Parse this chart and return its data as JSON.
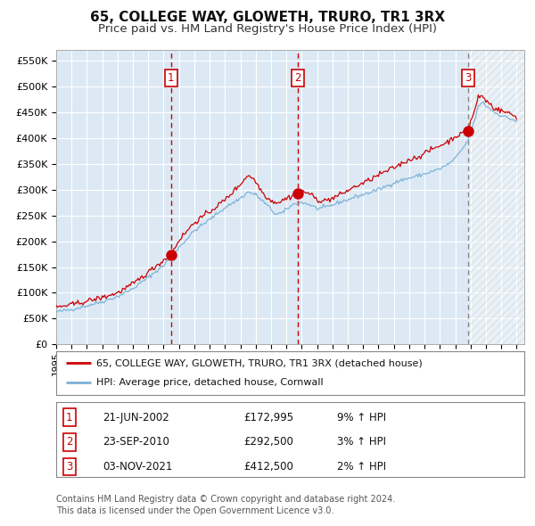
{
  "title": "65, COLLEGE WAY, GLOWETH, TRURO, TR1 3RX",
  "subtitle": "Price paid vs. HM Land Registry's House Price Index (HPI)",
  "title_fontsize": 11,
  "subtitle_fontsize": 9.5,
  "ylim": [
    0,
    570000
  ],
  "yticks": [
    0,
    50000,
    100000,
    150000,
    200000,
    250000,
    300000,
    350000,
    400000,
    450000,
    500000,
    550000
  ],
  "ytick_labels": [
    "£0",
    "£50K",
    "£100K",
    "£150K",
    "£200K",
    "£250K",
    "£300K",
    "£350K",
    "£400K",
    "£450K",
    "£500K",
    "£550K"
  ],
  "plot_bg_color": "#dce9f5",
  "grid_color": "#ffffff",
  "hpi_color": "#7ab0d4",
  "property_color": "#cc0000",
  "sale_marker_color": "#cc0000",
  "sale1_year": 2002.47,
  "sale1_price": 172995,
  "sale2_year": 2010.73,
  "sale2_price": 292500,
  "sale3_year": 2021.84,
  "sale3_price": 412500,
  "legend_label_property": "65, COLLEGE WAY, GLOWETH, TRURO, TR1 3RX (detached house)",
  "legend_label_hpi": "HPI: Average price, detached house, Cornwall",
  "footer1": "Contains HM Land Registry data © Crown copyright and database right 2024.",
  "footer2": "This data is licensed under the Open Government Licence v3.0.",
  "table_rows": [
    [
      "1",
      "21-JUN-2002",
      "£172,995",
      "9% ↑ HPI"
    ],
    [
      "2",
      "23-SEP-2010",
      "£292,500",
      "3% ↑ HPI"
    ],
    [
      "3",
      "03-NOV-2021",
      "£412,500",
      "2% ↑ HPI"
    ]
  ]
}
